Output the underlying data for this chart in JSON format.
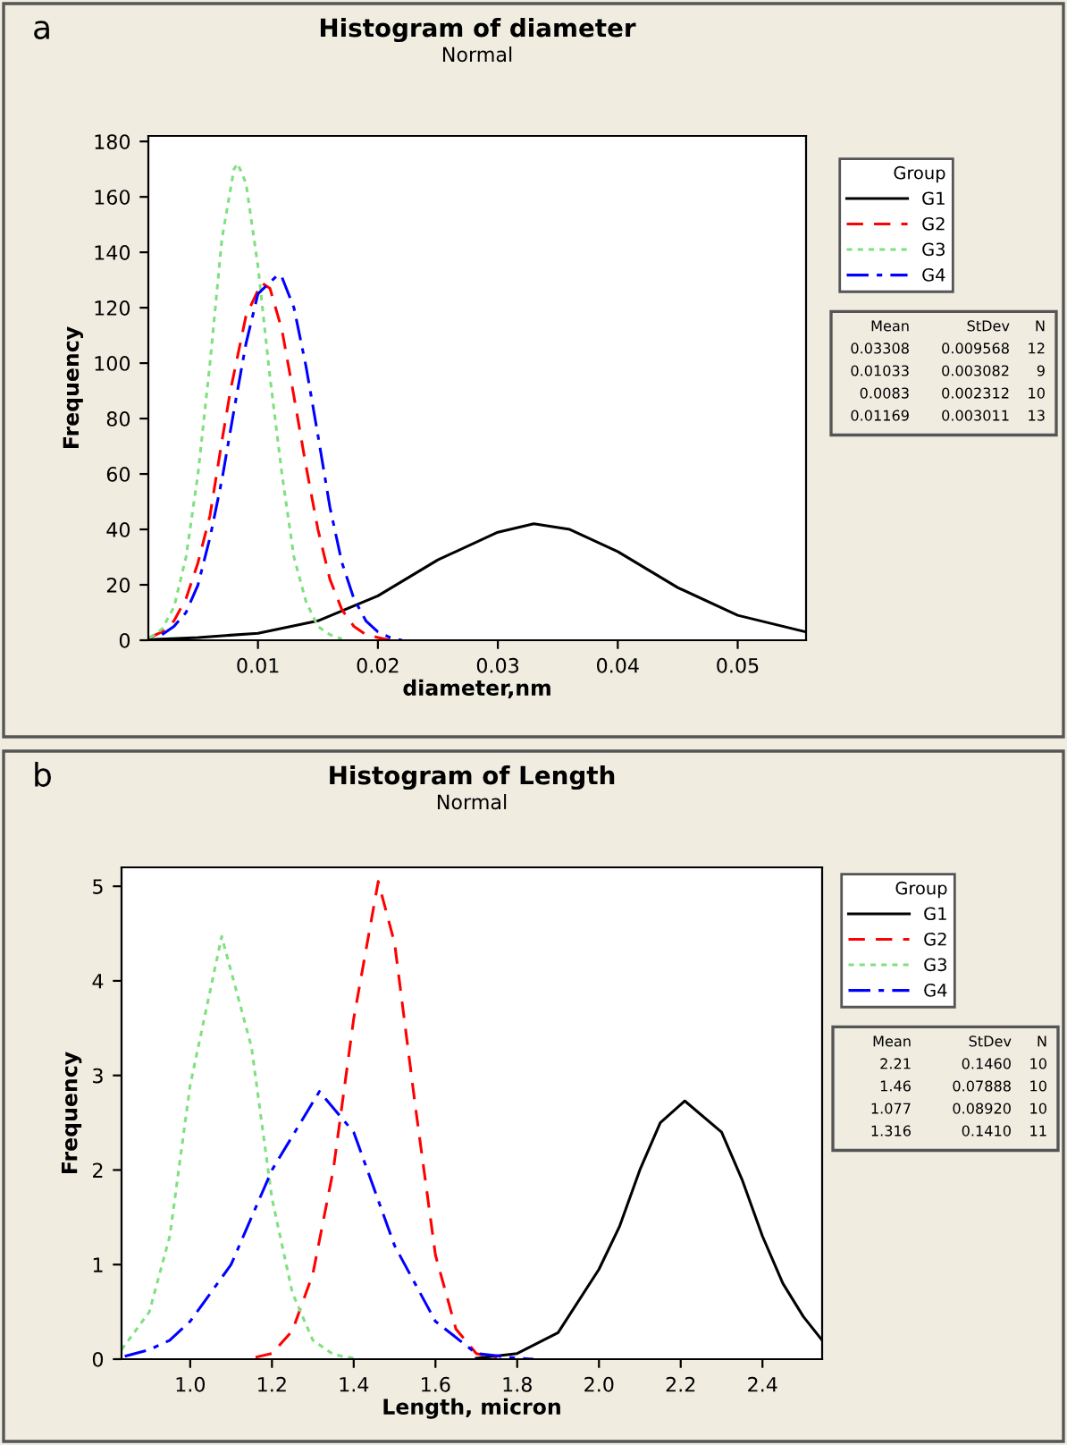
{
  "chart_data": [
    {
      "type": "line",
      "title": "Histogram of diameter",
      "subtitle": "Normal",
      "xlabel": "diameter,nm",
      "ylabel": "Frequency",
      "legend_title": "Group",
      "legend": "right",
      "grid": false,
      "marker": "none",
      "xlim": [
        0.00086,
        0.0557
      ],
      "ylim": [
        0,
        182
      ],
      "xticks": [
        0.01,
        0.02,
        0.03,
        0.04,
        0.05
      ],
      "yticks": [
        0,
        20,
        40,
        60,
        80,
        100,
        120,
        140,
        160,
        180
      ],
      "annotations": [
        "a",
        "Mean",
        "StDev",
        "N",
        "0.03308",
        "0.009568",
        "12",
        "0.01033",
        "0.003082",
        "9",
        "0.0083",
        "0.002312",
        "10",
        "0.01169",
        "0.003011",
        "13"
      ],
      "series": [
        {
          "name": "G1",
          "color": "#000000",
          "line_style": "solid",
          "x": [
            0.001,
            0.005,
            0.01,
            0.015,
            0.02,
            0.025,
            0.03,
            0.033,
            0.036,
            0.04,
            0.045,
            0.05,
            0.0557
          ],
          "values": [
            0.2,
            1,
            2.5,
            7,
            16,
            29,
            39,
            42,
            40,
            32,
            19,
            9,
            3
          ]
        },
        {
          "name": "G2",
          "color": "#ff0000",
          "line_style": "dashed",
          "x": [
            0.001,
            0.002,
            0.003,
            0.004,
            0.005,
            0.006,
            0.007,
            0.0077,
            0.009,
            0.0103,
            0.011,
            0.012,
            0.013,
            0.014,
            0.015,
            0.016,
            0.017,
            0.018,
            0.019,
            0.02,
            0.021
          ],
          "values": [
            1,
            3,
            7,
            15,
            28,
            45,
            72,
            90,
            117,
            129,
            127,
            112,
            88,
            63,
            40,
            22,
            11,
            5,
            2,
            1,
            0
          ]
        },
        {
          "name": "G3",
          "color": "#80e080",
          "line_style": "dotted",
          "x": [
            0.001,
            0.002,
            0.003,
            0.004,
            0.005,
            0.006,
            0.007,
            0.008,
            0.0083,
            0.009,
            0.01,
            0.011,
            0.012,
            0.013,
            0.014,
            0.015,
            0.016,
            0.017
          ],
          "values": [
            1,
            4,
            12,
            30,
            60,
            100,
            145,
            170,
            172,
            165,
            135,
            95,
            60,
            30,
            14,
            5,
            2,
            0.5
          ]
        },
        {
          "name": "G4",
          "color": "#0000ff",
          "line_style": "dashdot",
          "x": [
            0.002,
            0.003,
            0.004,
            0.005,
            0.006,
            0.007,
            0.008,
            0.009,
            0.01,
            0.0117,
            0.012,
            0.013,
            0.014,
            0.015,
            0.016,
            0.017,
            0.018,
            0.019,
            0.02,
            0.021,
            0.022
          ],
          "values": [
            2,
            5,
            10,
            20,
            37,
            58,
            83,
            107,
            125,
            132,
            131,
            120,
            99,
            74,
            48,
            28,
            15,
            7,
            3,
            1,
            0
          ]
        }
      ]
    },
    {
      "type": "line",
      "title": "Histogram of Length",
      "subtitle": "Normal",
      "xlabel": "Length, micron",
      "ylabel": "Frequency",
      "legend_title": "Group",
      "legend": "right",
      "grid": false,
      "marker": "none",
      "xlim": [
        0.832,
        2.546
      ],
      "ylim": [
        0,
        5.2
      ],
      "xticks": [
        {
          "value": 1.0,
          "label": "1.0"
        },
        1.2,
        1.4,
        1.6,
        1.8,
        {
          "value": 2.0,
          "label": "2.0"
        },
        2.2,
        2.4
      ],
      "yticks": [
        0,
        1,
        2,
        3,
        4,
        5
      ],
      "annotations": [
        "b",
        "Mean",
        "StDev",
        "N",
        "2.21",
        "0.1460",
        "10",
        "1.46",
        "0.07888",
        "10",
        "1.077",
        "0.08920",
        "10",
        "1.316",
        "0.1410",
        "11"
      ],
      "series": [
        {
          "name": "G1",
          "color": "#000000",
          "line_style": "solid",
          "x": [
            1.7,
            1.8,
            1.9,
            2.0,
            2.05,
            2.1,
            2.15,
            2.21,
            2.3,
            2.35,
            2.4,
            2.45,
            2.5,
            2.546
          ],
          "values": [
            0.01,
            0.06,
            0.28,
            0.95,
            1.4,
            2.0,
            2.5,
            2.73,
            2.4,
            1.9,
            1.3,
            0.8,
            0.45,
            0.2
          ]
        },
        {
          "name": "G2",
          "color": "#ff0000",
          "line_style": "dashed",
          "x": [
            1.16,
            1.2,
            1.25,
            1.3,
            1.35,
            1.4,
            1.46,
            1.5,
            1.55,
            1.6,
            1.65,
            1.7,
            1.75
          ],
          "values": [
            0.02,
            0.06,
            0.3,
            0.9,
            2.0,
            3.6,
            5.05,
            4.4,
            2.7,
            1.1,
            0.32,
            0.06,
            0.01
          ]
        },
        {
          "name": "G3",
          "color": "#80e080",
          "line_style": "dotted",
          "x": [
            0.832,
            0.9,
            0.95,
            1.0,
            1.077,
            1.15,
            1.2,
            1.25,
            1.3,
            1.35,
            1.4
          ],
          "values": [
            0.1,
            0.5,
            1.3,
            2.9,
            4.47,
            3.3,
            1.7,
            0.7,
            0.2,
            0.05,
            0.01
          ]
        },
        {
          "name": "G4",
          "color": "#0000ff",
          "line_style": "dashdot",
          "x": [
            0.84,
            0.9,
            0.95,
            1.0,
            1.1,
            1.2,
            1.316,
            1.4,
            1.5,
            1.6,
            1.7,
            1.8,
            1.84
          ],
          "values": [
            0.03,
            0.1,
            0.2,
            0.4,
            1.0,
            2.0,
            2.83,
            2.4,
            1.2,
            0.4,
            0.06,
            0.01,
            0
          ]
        }
      ]
    }
  ]
}
